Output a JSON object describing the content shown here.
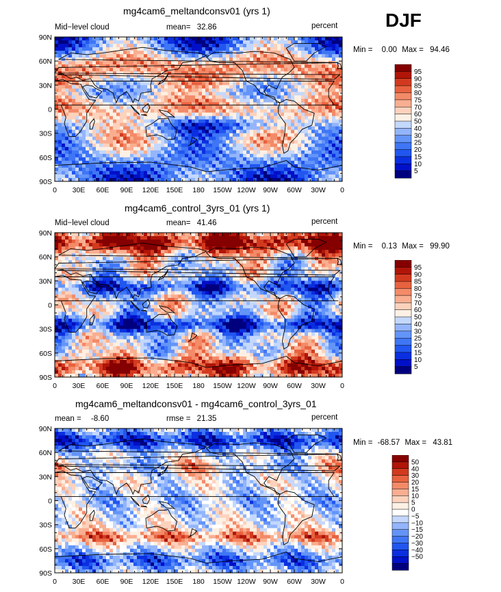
{
  "season": "DJF",
  "panels": [
    {
      "title": "mg4cam6_meltandconsv01 (yrs 1)",
      "left_label": "Mid−level cloud",
      "stat_label": "mean=",
      "stat_value": "32.86",
      "extra_label": "",
      "extra_value": "",
      "units": "percent",
      "min_label": "Min =",
      "min_value": "0.00",
      "max_label": "Max =",
      "max_value": "94.46",
      "colorbar_labels": [
        "95",
        "90",
        "85",
        "80",
        "75",
        "70",
        "60",
        "50",
        "40",
        "30",
        "25",
        "20",
        "15",
        "10",
        "5"
      ]
    },
    {
      "title": "mg4cam6_control_3yrs_01 (yrs 1)",
      "left_label": "Mid−level cloud",
      "stat_label": "mean=",
      "stat_value": "41.46",
      "extra_label": "",
      "extra_value": "",
      "units": "percent",
      "min_label": "Min =",
      "min_value": "0.13",
      "max_label": "Max =",
      "max_value": "99.90",
      "colorbar_labels": [
        "95",
        "90",
        "85",
        "80",
        "75",
        "70",
        "60",
        "50",
        "40",
        "30",
        "25",
        "20",
        "15",
        "10",
        "5"
      ]
    },
    {
      "title": "mg4cam6_meltandconsv01 - mg4cam6_control_3yrs_01",
      "left_label": "mean =",
      "stat_label": "",
      "stat_value": "-8.60",
      "extra_label": "rmse =",
      "extra_value": "21.35",
      "units": "percent",
      "min_label": "Min =",
      "min_value": "-68.57",
      "max_label": "Max =",
      "max_value": "43.81",
      "colorbar_labels": [
        "50",
        "40",
        "30",
        "20",
        "15",
        "10",
        "5",
        "0",
        "−5",
        "−10",
        "−15",
        "−20",
        "−30",
        "−40",
        "−50"
      ]
    }
  ],
  "lat_ticks": [
    "90N",
    "60N",
    "30N",
    "0",
    "30S",
    "60S",
    "90S"
  ],
  "lon_ticks": [
    "0",
    "30E",
    "60E",
    "90E",
    "120E",
    "150E",
    "180",
    "150W",
    "120W",
    "90W",
    "60W",
    "30W",
    "0"
  ],
  "colors": {
    "abs_scale": [
      "#00007f",
      "#0010c8",
      "#0a2fe0",
      "#2156f0",
      "#3f76f5",
      "#6394f8",
      "#93b5fb",
      "#c4d8fd",
      "#fdf0e4",
      "#fdd2bc",
      "#f9ae90",
      "#f38a68",
      "#e8623f",
      "#d23a1f",
      "#b01508",
      "#850000"
    ],
    "diff_scale": [
      "#00007f",
      "#0010c8",
      "#0a2fe0",
      "#2156f0",
      "#3f76f5",
      "#6394f8",
      "#93b5fb",
      "#c4d8fd",
      "#ffffff",
      "#fdf0e4",
      "#fdd2bc",
      "#f9ae90",
      "#f38a68",
      "#e8623f",
      "#d23a1f",
      "#b01508",
      "#850000"
    ]
  }
}
